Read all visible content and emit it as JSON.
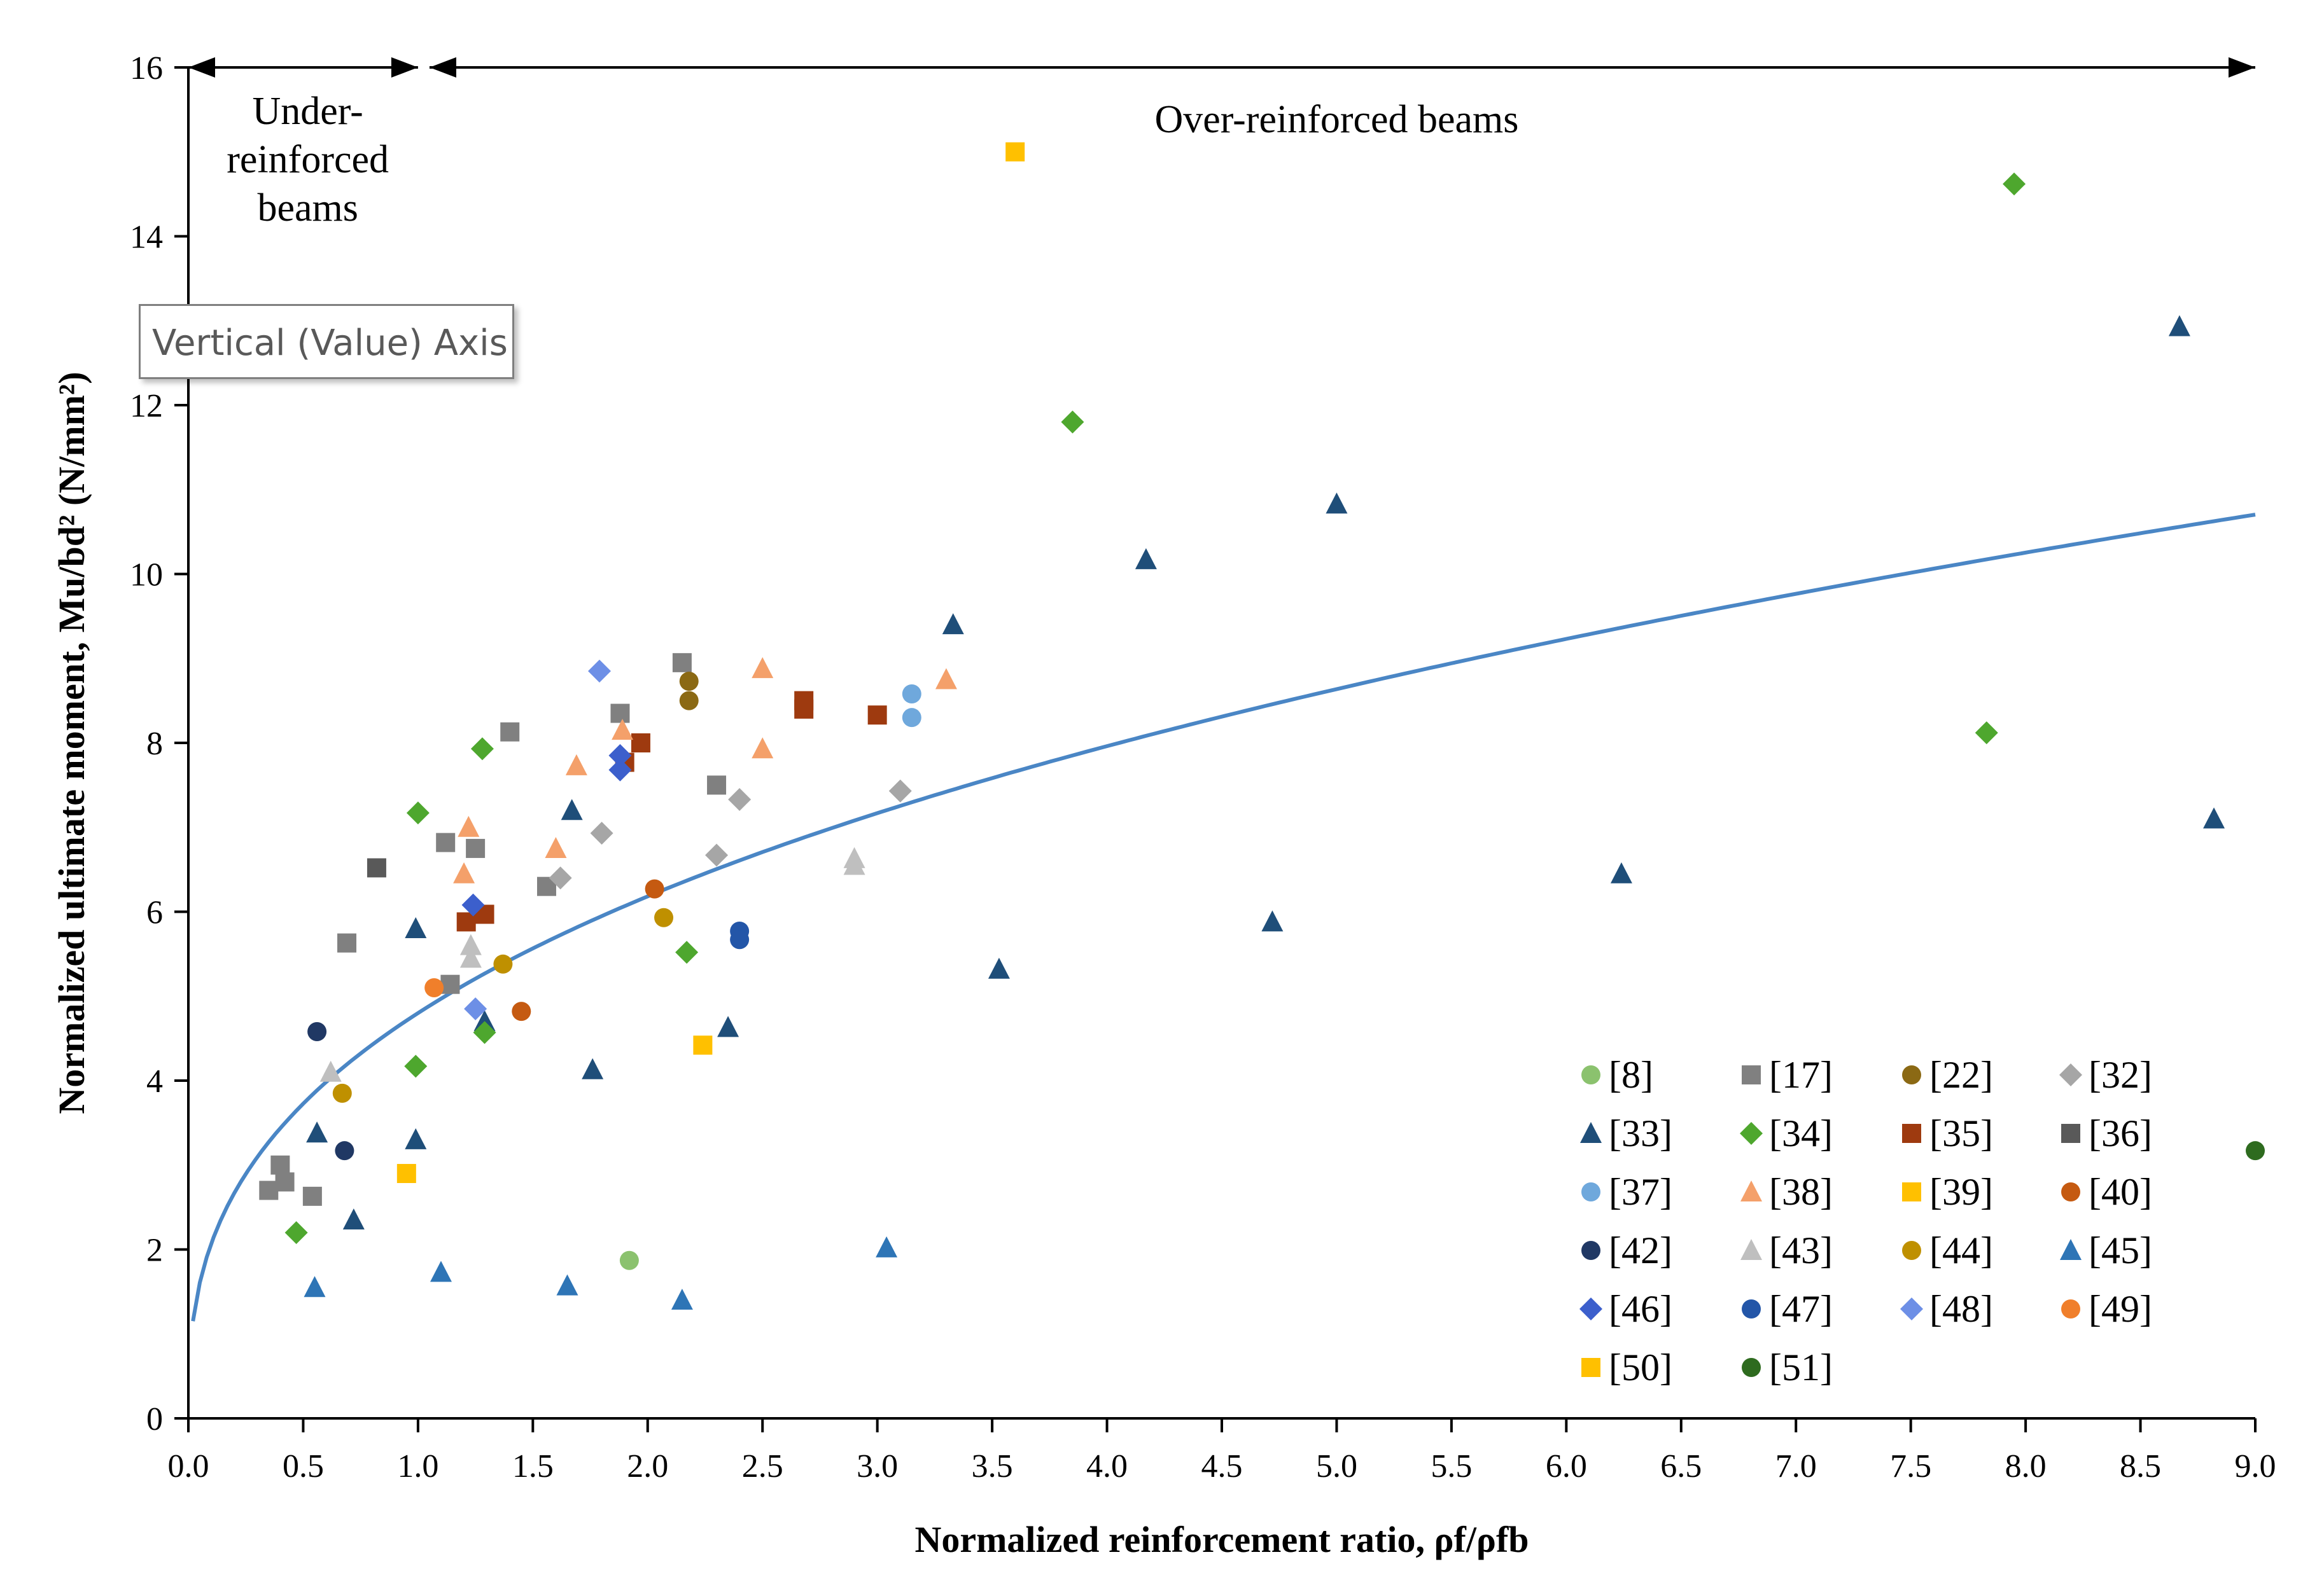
{
  "chart_data": {
    "type": "scatter",
    "xlabel": "Normalized reinforcement ratio, ρf/ρfb",
    "ylabel": "Normalized ultimate moment, Mu/bd² (N/mm²)",
    "xlim": [
      0,
      9
    ],
    "ylim": [
      0,
      16
    ],
    "xticks": [
      "0.0",
      "0.5",
      "1.0",
      "1.5",
      "2.0",
      "2.5",
      "3.0",
      "3.5",
      "4.0",
      "4.5",
      "5.0",
      "5.5",
      "6.0",
      "6.5",
      "7.0",
      "7.5",
      "8.0",
      "8.5",
      "9.0"
    ],
    "yticks": [
      "0",
      "2",
      "4",
      "6",
      "8",
      "10",
      "12",
      "14",
      "16"
    ],
    "grid": false,
    "legend_position": "bottom-right",
    "annotations": {
      "under_reinforced": [
        "Under-",
        "reinforced",
        "beams"
      ],
      "over_reinforced": "Over-reinforced beams",
      "under_range": [
        0,
        1.0
      ],
      "over_range": [
        1.05,
        9.0
      ]
    },
    "trendline": {
      "equation": "y = 4.8 * x^0.365",
      "x_start": 0.02,
      "x_end": 9.0,
      "color": "#4a86c5"
    },
    "series": [
      {
        "name": "[8]",
        "marker": "circle",
        "color": "#8bc26e",
        "points": [
          [
            1.92,
            1.87
          ]
        ]
      },
      {
        "name": "[17]",
        "marker": "square",
        "color": "#808080",
        "points": [
          [
            0.35,
            2.7
          ],
          [
            0.42,
            2.8
          ],
          [
            0.4,
            3.0
          ],
          [
            0.54,
            2.63
          ],
          [
            0.69,
            5.63
          ],
          [
            1.12,
            6.82
          ],
          [
            1.25,
            6.75
          ],
          [
            1.4,
            8.13
          ],
          [
            1.88,
            8.35
          ],
          [
            2.15,
            8.95
          ],
          [
            2.3,
            7.5
          ],
          [
            1.56,
            6.3
          ],
          [
            1.14,
            5.14
          ]
        ]
      },
      {
        "name": "[22]",
        "marker": "circle",
        "color": "#8b6914",
        "points": [
          [
            2.18,
            8.73
          ],
          [
            2.18,
            8.5
          ]
        ]
      },
      {
        "name": "[32]",
        "marker": "diamond",
        "color": "#a6a6a6",
        "points": [
          [
            1.8,
            6.93
          ],
          [
            2.3,
            6.67
          ],
          [
            2.4,
            7.33
          ],
          [
            3.1,
            7.43
          ],
          [
            1.62,
            6.4
          ]
        ]
      },
      {
        "name": "[33]",
        "marker": "triangle",
        "color": "#1f4e79",
        "points": [
          [
            0.56,
            3.38
          ],
          [
            0.72,
            2.35
          ],
          [
            0.99,
            3.3
          ],
          [
            0.99,
            5.8
          ],
          [
            1.29,
            4.7
          ],
          [
            1.76,
            4.13
          ],
          [
            1.67,
            7.2
          ],
          [
            2.35,
            4.63
          ],
          [
            3.33,
            9.4
          ],
          [
            3.53,
            5.32
          ],
          [
            4.17,
            10.17
          ],
          [
            4.72,
            5.88
          ],
          [
            5.0,
            10.83
          ],
          [
            6.24,
            6.45
          ],
          [
            8.67,
            12.93
          ],
          [
            8.82,
            7.1
          ]
        ]
      },
      {
        "name": "[34]",
        "marker": "diamond",
        "color": "#4ea72e",
        "points": [
          [
            0.47,
            2.2
          ],
          [
            0.99,
            4.17
          ],
          [
            1.0,
            7.17
          ],
          [
            1.29,
            4.57
          ],
          [
            1.28,
            7.93
          ],
          [
            2.17,
            5.52
          ],
          [
            3.85,
            11.8
          ],
          [
            7.95,
            14.62
          ],
          [
            7.83,
            8.12
          ]
        ]
      },
      {
        "name": "[35]",
        "marker": "square",
        "color": "#9e3a0f",
        "points": [
          [
            1.21,
            5.88
          ],
          [
            1.29,
            5.97
          ],
          [
            1.9,
            7.77
          ],
          [
            1.97,
            8.0
          ],
          [
            2.68,
            8.5
          ],
          [
            2.68,
            8.4
          ],
          [
            3.0,
            8.33
          ]
        ]
      },
      {
        "name": "[36]",
        "marker": "square",
        "color": "#595959",
        "points": [
          [
            0.82,
            6.52
          ]
        ]
      },
      {
        "name": "[37]",
        "marker": "circle",
        "color": "#6fa8dc",
        "points": [
          [
            3.15,
            8.58
          ],
          [
            3.15,
            8.3
          ]
        ]
      },
      {
        "name": "[38]",
        "marker": "triangle",
        "color": "#f4a06a",
        "points": [
          [
            1.22,
            7.0
          ],
          [
            1.2,
            6.45
          ],
          [
            1.6,
            6.75
          ],
          [
            1.69,
            7.73
          ],
          [
            1.89,
            8.15
          ],
          [
            2.5,
            7.93
          ],
          [
            2.5,
            8.88
          ],
          [
            3.3,
            8.75
          ]
        ]
      },
      {
        "name": "[39]",
        "marker": "square",
        "color": "#ffc000",
        "points": [
          [
            0.95,
            2.9
          ]
        ]
      },
      {
        "name": "[40]",
        "marker": "circle",
        "color": "#c55a11",
        "points": [
          [
            1.45,
            4.82
          ],
          [
            2.03,
            6.27
          ]
        ]
      },
      {
        "name": "[42]",
        "marker": "circle",
        "color": "#203864",
        "points": [
          [
            0.56,
            4.58
          ],
          [
            0.68,
            3.17
          ]
        ]
      },
      {
        "name": "[43]",
        "marker": "triangle",
        "color": "#bfbfbf",
        "points": [
          [
            0.62,
            4.1
          ],
          [
            1.23,
            5.45
          ],
          [
            1.23,
            5.6
          ],
          [
            2.9,
            6.55
          ],
          [
            2.9,
            6.63
          ]
        ]
      },
      {
        "name": "[44]",
        "marker": "circle",
        "color": "#bf9000",
        "points": [
          [
            0.67,
            3.85
          ],
          [
            1.37,
            5.38
          ],
          [
            2.07,
            5.93
          ]
        ]
      },
      {
        "name": "[45]",
        "marker": "triangle",
        "color": "#2e75b6",
        "points": [
          [
            0.55,
            1.55
          ],
          [
            1.1,
            1.73
          ],
          [
            1.65,
            1.57
          ],
          [
            2.15,
            1.4
          ],
          [
            3.04,
            2.02
          ]
        ]
      },
      {
        "name": "[46]",
        "marker": "diamond",
        "color": "#3c5fcc",
        "points": [
          [
            1.24,
            6.08
          ],
          [
            1.88,
            7.85
          ],
          [
            1.88,
            7.68
          ]
        ]
      },
      {
        "name": "[47]",
        "marker": "circle",
        "color": "#2356a8",
        "points": [
          [
            2.4,
            5.77
          ],
          [
            2.4,
            5.67
          ]
        ]
      },
      {
        "name": "[48]",
        "marker": "diamond",
        "color": "#6d8fe6",
        "points": [
          [
            1.79,
            8.85
          ],
          [
            1.25,
            4.85
          ]
        ]
      },
      {
        "name": "[49]",
        "marker": "circle",
        "color": "#f07f2b",
        "points": [
          [
            1.07,
            5.1
          ]
        ]
      },
      {
        "name": "[50]",
        "marker": "square",
        "color": "#ffc000",
        "points": [
          [
            3.6,
            15.0
          ],
          [
            2.24,
            4.42
          ]
        ]
      },
      {
        "name": "[51]",
        "marker": "circle",
        "color": "#2e6b1f",
        "points": [
          [
            9.0,
            3.17
          ]
        ]
      }
    ]
  },
  "tooltip": {
    "text": "Vertical (Value) Axis"
  }
}
